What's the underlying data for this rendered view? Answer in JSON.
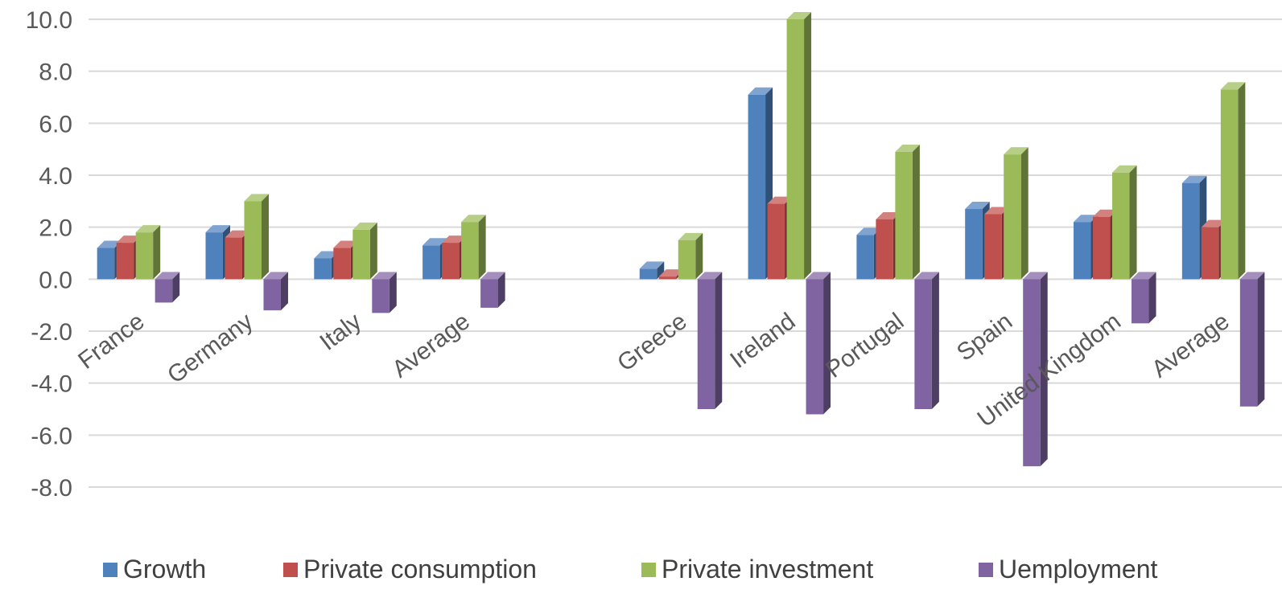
{
  "chart_data": {
    "type": "bar",
    "title": "",
    "xlabel": "",
    "ylabel": "",
    "ylim": [
      -8,
      10
    ],
    "yticks": [
      "10.0",
      "8.0",
      "6.0",
      "4.0",
      "2.0",
      "0.0",
      "-2.0",
      "-4.0",
      "-6.0",
      "-8.0"
    ],
    "grid": true,
    "legend_position": "bottom",
    "style": "3d-clustered-column",
    "categories": [
      "France",
      "Germany",
      "Italy",
      "Average",
      "",
      "Greece",
      "Ireland",
      "Portugal",
      "Spain",
      "United Kingdom",
      "Average"
    ],
    "series": [
      {
        "name": "Growth",
        "color": "#4f81bd",
        "values": [
          1.2,
          1.8,
          0.8,
          1.3,
          null,
          0.4,
          7.1,
          1.7,
          2.7,
          2.2,
          3.7
        ]
      },
      {
        "name": "Private consumption",
        "color": "#c0504d",
        "values": [
          1.4,
          1.6,
          1.2,
          1.4,
          null,
          0.1,
          2.9,
          2.3,
          2.5,
          2.4,
          2.0
        ]
      },
      {
        "name": "Private investment",
        "color": "#9bbb59",
        "values": [
          1.8,
          3.0,
          1.9,
          2.2,
          null,
          1.5,
          10.0,
          4.9,
          4.8,
          4.1,
          7.3
        ]
      },
      {
        "name": "Uemployment",
        "color": "#8064a2",
        "values": [
          -0.9,
          -1.2,
          -1.3,
          -1.1,
          null,
          -5.0,
          -5.2,
          -5.0,
          -7.2,
          -1.7,
          -4.9
        ]
      }
    ]
  }
}
